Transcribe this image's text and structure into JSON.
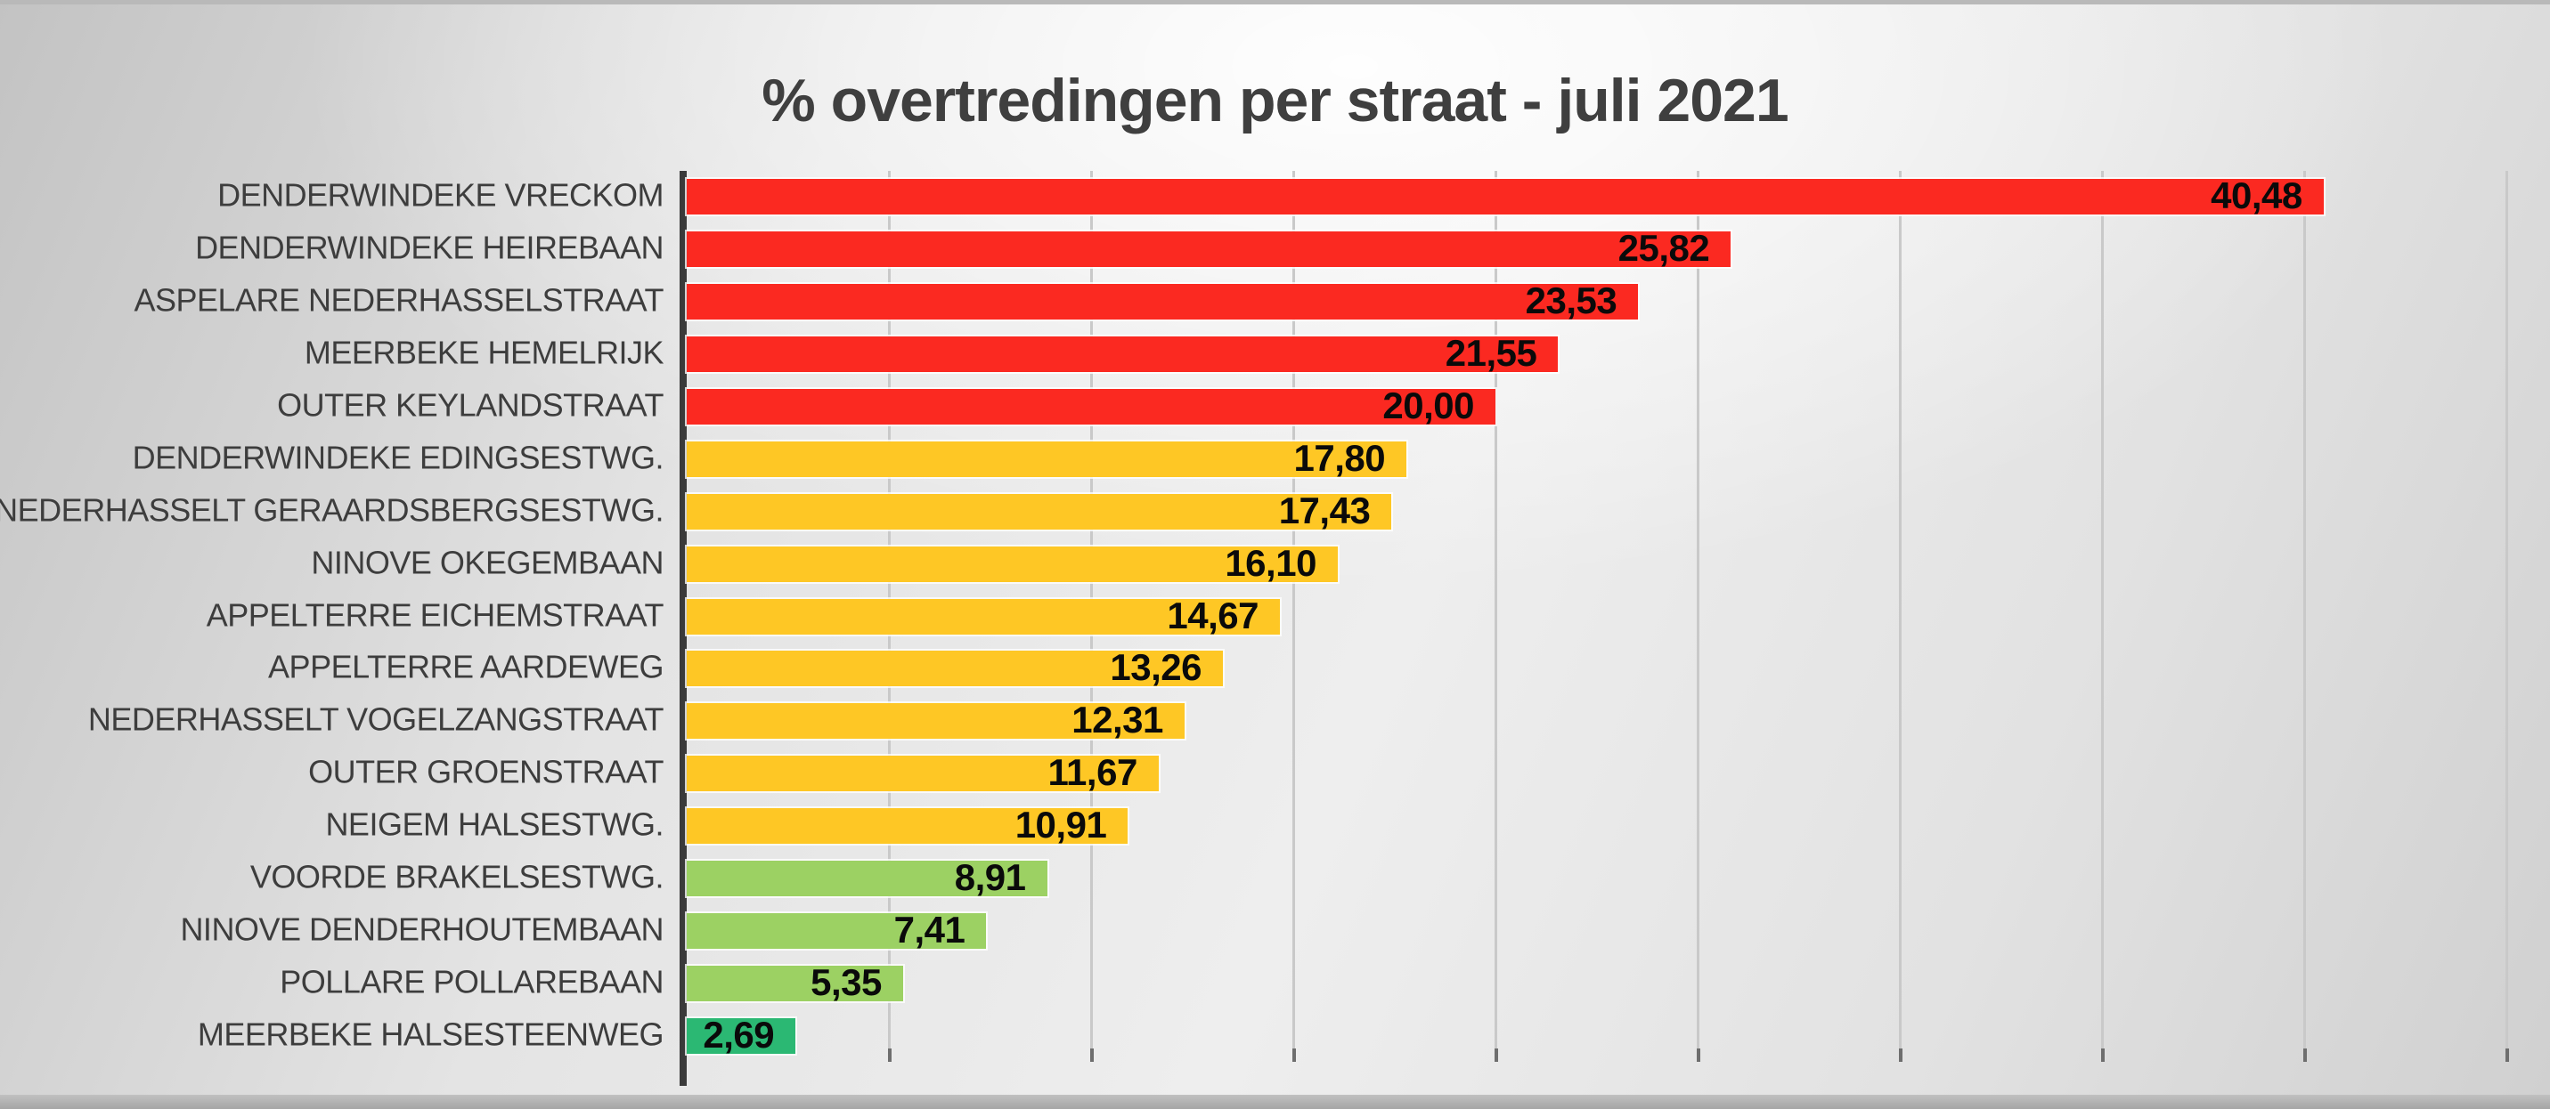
{
  "title": "% overtredingen per straat - juli 2021",
  "colors": {
    "red": "#fb2921",
    "amber": "#fec725",
    "green": "#9cd163",
    "dark_green": "#2bb873",
    "title_text": "#3f3f3f",
    "category_text": "#3d3d3d",
    "value_text": "#0a0a0a",
    "axis": "#3a3a3a",
    "gridline": "#c9c9c9",
    "tick": "#6e6e6e"
  },
  "chart_data": {
    "type": "bar",
    "orientation": "horizontal",
    "title": "% overtredingen per straat - juli 2021",
    "xlabel": "",
    "ylabel": "",
    "xlim": [
      0,
      45
    ],
    "gridline_step": 5,
    "grid": true,
    "legend": false,
    "value_label_format": "comma-decimal, bold, inside bar end",
    "categories": [
      "DENDERWINDEKE VRECKOM",
      "DENDERWINDEKE HEIREBAAN",
      "ASPELARE NEDERHASSELSTRAAT",
      "MEERBEKE HEMELRIJK",
      "OUTER KEYLANDSTRAAT",
      "DENDERWINDEKE EDINGSESTWG.",
      "NEDERHASSELT GERAARDSBERGSESTWG.",
      "NINOVE OKEGEMBAAN",
      "APPELTERRE EICHEMSTRAAT",
      "APPELTERRE AARDEWEG",
      "NEDERHASSELT VOGELZANGSTRAAT",
      "OUTER GROENSTRAAT",
      "NEIGEM HALSESTWG.",
      "VOORDE BRAKELSESTWG.",
      "NINOVE DENDERHOUTEMBAAN",
      "POLLARE POLLAREBAAN",
      "MEERBEKE HALSESTEENWEG"
    ],
    "values": [
      40.48,
      25.82,
      23.53,
      21.55,
      20.0,
      17.8,
      17.43,
      16.1,
      14.67,
      13.26,
      12.31,
      11.67,
      10.91,
      8.91,
      7.41,
      5.35,
      2.69
    ],
    "value_labels": [
      "40,48",
      "25,82",
      "23,53",
      "21,55",
      "20,00",
      "17,80",
      "17,43",
      "16,10",
      "14,67",
      "13,26",
      "12,31",
      "11,67",
      "10,91",
      "8,91",
      "7,41",
      "5,35",
      "2,69"
    ],
    "bands": [
      "red",
      "red",
      "red",
      "red",
      "red",
      "amber",
      "amber",
      "amber",
      "amber",
      "amber",
      "amber",
      "amber",
      "amber",
      "green",
      "green",
      "green",
      "dark_green"
    ]
  }
}
